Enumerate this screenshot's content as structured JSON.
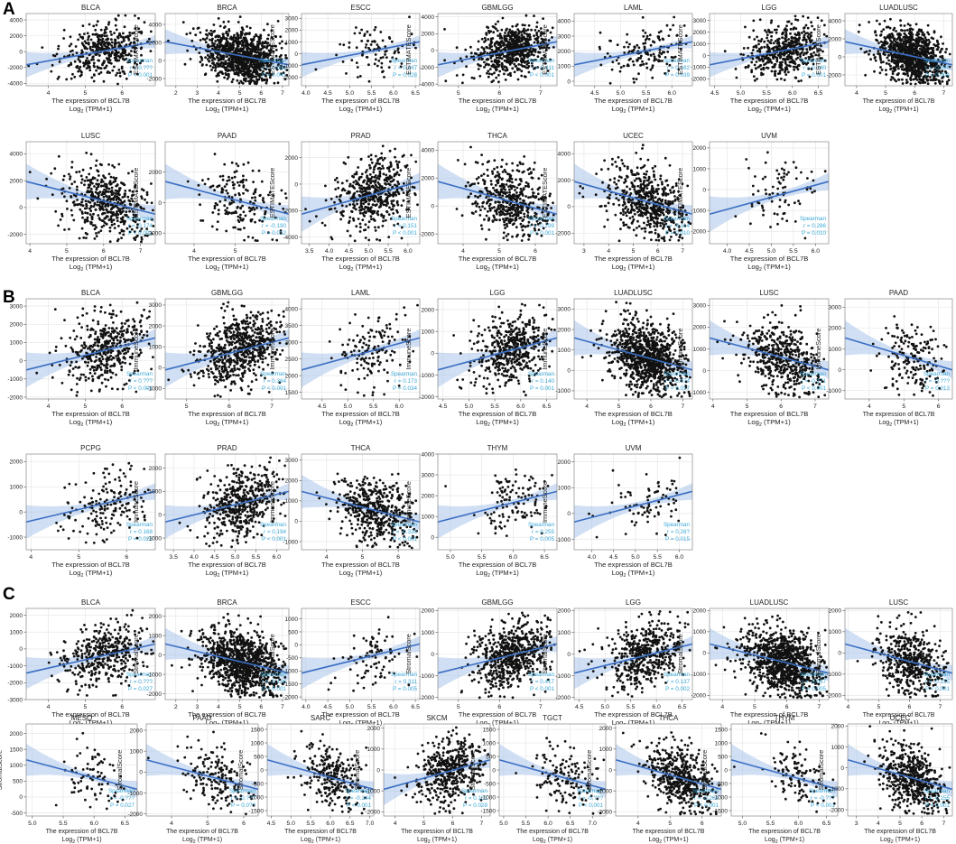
{
  "figure": {
    "colors": {
      "point": "#111111",
      "line": "#3b6fc4",
      "band": "#aac4ea",
      "stat": "#3aa7d6",
      "frame": "#888888"
    },
    "xlabel": "The expression of BCL7B",
    "xlabel2": "Log",
    "xlabel2_sub": "2",
    "xlabel2_tail": " (TPM+1)",
    "stat_label": "Spearman",
    "panels": [
      {
        "label": "A",
        "ylabel": "ESTIMATEScore"
      },
      {
        "label": "B",
        "ylabel": "ImmuneScore"
      },
      {
        "label": "C",
        "ylabel": "StromalScore"
      }
    ]
  },
  "chart_data": [
    {
      "panel": "A",
      "title": "BLCA",
      "type": "scatter",
      "xticks": [
        "4",
        "5",
        "6"
      ],
      "yticks": [
        "-4000",
        "-2000",
        "0",
        "2000",
        "4000"
      ],
      "xlim": [
        3.4,
        6.9
      ],
      "ylim": [
        -4300,
        4800
      ],
      "slope": "pos",
      "r": "r = 0.???",
      "p": "P < 0.001",
      "n": 420
    },
    {
      "panel": "A",
      "title": "BRCA",
      "type": "scatter",
      "xticks": [
        "2",
        "3",
        "4",
        "5",
        "6",
        "7"
      ],
      "yticks": [
        "-2000",
        "0",
        "2000",
        "4000"
      ],
      "xlim": [
        1.5,
        7.3
      ],
      "ylim": [
        -2800,
        5200
      ],
      "slope": "neg",
      "r": "r = -0.061",
      "p": "P = 0.041",
      "n": 1000
    },
    {
      "panel": "A",
      "title": "ESCC",
      "type": "scatter",
      "xticks": [
        "4.0",
        "4.5",
        "5.0",
        "5.5",
        "6.0",
        "6.5"
      ],
      "yticks": [
        "-2000",
        "-1000",
        "0",
        "1000",
        "2000",
        "3000"
      ],
      "xlim": [
        3.9,
        6.6
      ],
      "ylim": [
        -2700,
        3400
      ],
      "slope": "pos",
      "r": "r = 0.247",
      "p": "P = 0.028",
      "n": 90
    },
    {
      "panel": "A",
      "title": "GBMLGG",
      "type": "scatter",
      "xticks": [
        "5",
        "6",
        "7"
      ],
      "yticks": [
        "-4000",
        "-2000",
        "0",
        "2000",
        "4000"
      ],
      "xlim": [
        4.5,
        7.4
      ],
      "ylim": [
        -4200,
        4400
      ],
      "slope": "pos",
      "r": "r = 0.411",
      "p": "P < 0.001",
      "n": 650
    },
    {
      "panel": "A",
      "title": "LAML",
      "type": "scatter",
      "xticks": [
        "4.5",
        "5.0",
        "5.5",
        "6.0"
      ],
      "yticks": [
        "0",
        "1000",
        "2000",
        "3000",
        "4000"
      ],
      "xlim": [
        4.1,
        6.4
      ],
      "ylim": [
        -300,
        4500
      ],
      "slope": "pos",
      "r": "r = 0.162",
      "p": "P = 0.039",
      "n": 150
    },
    {
      "panel": "A",
      "title": "LGG",
      "type": "scatter",
      "xticks": [
        "4.5",
        "5.0",
        "5.5",
        "6.0",
        "6.5"
      ],
      "yticks": [
        "-2000",
        "-1000",
        "0",
        "1000",
        "2000",
        "3000"
      ],
      "xlim": [
        4.4,
        6.7
      ],
      "ylim": [
        -2600,
        3600
      ],
      "slope": "pos",
      "r": "r = 0.140",
      "p": "P = 0.001",
      "n": 500
    },
    {
      "panel": "A",
      "title": "LUADLUSC",
      "type": "scatter",
      "xticks": [
        "4",
        "5",
        "6",
        "7"
      ],
      "yticks": [
        "-2000",
        "0",
        "2000",
        "4000"
      ],
      "xlim": [
        3.6,
        7.3
      ],
      "ylim": [
        -3200,
        4800
      ],
      "slope": "neg",
      "r": "r = -0.090",
      "p": "P = 0.004",
      "n": 1000
    },
    {
      "panel": "A",
      "title": "LUSC",
      "type": "scatter",
      "xticks": [
        "4",
        "5",
        "6",
        "7"
      ],
      "yticks": [
        "-2000",
        "0",
        "2000",
        "4000"
      ],
      "xlim": [
        3.9,
        7.4
      ],
      "ylim": [
        -2700,
        4900
      ],
      "slope": "neg",
      "r": "r = -0.174",
      "p": "P < 0.001",
      "n": 500
    },
    {
      "panel": "A",
      "title": "PAAD",
      "type": "scatter",
      "xticks": [
        "4",
        "5"
      ],
      "yticks": [
        "-2000",
        "0",
        "2000"
      ],
      "xlim": [
        3.3,
        6.3
      ],
      "ylim": [
        -2700,
        4000
      ],
      "slope": "neg",
      "r": "r = -0.190",
      "p": "P = 0.012",
      "n": 180
    },
    {
      "panel": "A",
      "title": "PRAD",
      "type": "scatter",
      "xticks": [
        "3.5",
        "4.0",
        "4.5",
        "5.0",
        "5.5",
        "6.0"
      ],
      "yticks": [
        "-4000",
        "-2000",
        "0",
        "2000"
      ],
      "xlim": [
        3.3,
        6.3
      ],
      "ylim": [
        -4500,
        3200
      ],
      "slope": "pos",
      "r": "r = 0.151",
      "p": "P < 0.001",
      "n": 500
    },
    {
      "panel": "A",
      "title": "THCA",
      "type": "scatter",
      "xticks": [
        "4",
        "5",
        "6"
      ],
      "yticks": [
        "-2000",
        "0",
        "2000",
        "4000"
      ],
      "xlim": [
        3.3,
        6.6
      ],
      "ylim": [
        -2700,
        4600
      ],
      "slope": "neg",
      "r": "r = -0.299",
      "p": "P < 0.001",
      "n": 500
    },
    {
      "panel": "A",
      "title": "UCEC",
      "type": "scatter",
      "xticks": [
        "3",
        "4",
        "5",
        "6",
        "7"
      ],
      "yticks": [
        "-2000",
        "0",
        "2000",
        "4000"
      ],
      "xlim": [
        2.6,
        7.4
      ],
      "ylim": [
        -2800,
        4900
      ],
      "slope": "neg",
      "r": "r = -0.114",
      "p": "P = 0.010",
      "n": 550
    },
    {
      "panel": "A",
      "title": "UVM",
      "type": "scatter",
      "xticks": [
        "4.0",
        "4.5",
        "5.0",
        "5.5",
        "6.0"
      ],
      "yticks": [
        "-2000",
        "-1000",
        "0",
        "1000",
        "2000"
      ],
      "xlim": [
        3.6,
        6.3
      ],
      "ylim": [
        -2600,
        2300
      ],
      "slope": "pos",
      "r": "r = 0.286",
      "p": "P = 0.010",
      "n": 80
    },
    {
      "panel": "B",
      "title": "BLCA",
      "type": "scatter",
      "xticks": [
        "4",
        "5",
        "6"
      ],
      "yticks": [
        "-2000",
        "-1000",
        "0",
        "1000",
        "2000",
        "3000"
      ],
      "xlim": [
        3.4,
        6.9
      ],
      "ylim": [
        -2100,
        3400
      ],
      "slope": "pos",
      "r": "r = 0.???",
      "p": "P < 0.001",
      "n": 420
    },
    {
      "panel": "B",
      "title": "GBMLGG",
      "type": "scatter",
      "xticks": [
        "5",
        "6",
        "7"
      ],
      "yticks": [
        "-1000",
        "0",
        "1000",
        "2000",
        "3000"
      ],
      "xlim": [
        4.5,
        7.4
      ],
      "ylim": [
        -1500,
        3300
      ],
      "slope": "pos",
      "r": "r = 0.384",
      "p": "P < 0.001",
      "n": 650
    },
    {
      "panel": "B",
      "title": "LAML",
      "type": "scatter",
      "xticks": [
        "4.5",
        "5.0",
        "5.5",
        "6.0"
      ],
      "yticks": [
        "1500",
        "2000",
        "2500",
        "3000",
        "3500",
        "4000"
      ],
      "xlim": [
        4.1,
        6.4
      ],
      "ylim": [
        1300,
        4300
      ],
      "slope": "pos",
      "r": "r = 0.173",
      "p": "P = 0.034",
      "n": 150
    },
    {
      "panel": "B",
      "title": "LGG",
      "type": "scatter",
      "xticks": [
        "4.5",
        "5.0",
        "5.5",
        "6.0",
        "6.5"
      ],
      "yticks": [
        "-2000",
        "-1000",
        "0",
        "1000",
        "2000"
      ],
      "xlim": [
        4.4,
        6.7
      ],
      "ylim": [
        -2100,
        2500
      ],
      "slope": "pos",
      "r": "r = 0.140",
      "p": "P = 0.001",
      "n": 500
    },
    {
      "panel": "B",
      "title": "LUADLUSC",
      "type": "scatter",
      "xticks": [
        "4",
        "5",
        "6",
        "7"
      ],
      "yticks": [
        "-1000",
        "0",
        "1000",
        "2000",
        "3000"
      ],
      "xlim": [
        3.6,
        7.3
      ],
      "ylim": [
        -1400,
        3500
      ],
      "slope": "neg",
      "r": "r = -0.074",
      "p": "P = 0.017",
      "n": 1000
    },
    {
      "panel": "B",
      "title": "LUSC",
      "type": "scatter",
      "xticks": [
        "4",
        "5",
        "6",
        "7"
      ],
      "yticks": [
        "-1000",
        "0",
        "1000",
        "2000",
        "3000"
      ],
      "xlim": [
        3.9,
        7.4
      ],
      "ylim": [
        -1300,
        3300
      ],
      "slope": "neg",
      "r": "r = -0.171",
      "p": "P < 0.001",
      "n": 500
    },
    {
      "panel": "B",
      "title": "PAAD",
      "type": "scatter",
      "xticks": [
        "4",
        "5",
        "6"
      ],
      "yticks": [
        "-1000",
        "0",
        "1000",
        "2000",
        "3000"
      ],
      "xlim": [
        3.3,
        6.4
      ],
      "ylim": [
        -1400,
        3400
      ],
      "slope": "neg",
      "r": "r = -0.???",
      "p": "P = 0.013",
      "n": 180
    },
    {
      "panel": "B",
      "title": "PCPG",
      "type": "scatter",
      "xticks": [
        "4",
        "5",
        "6"
      ],
      "yticks": [
        "-1000",
        "0",
        "1000",
        "2000"
      ],
      "xlim": [
        3.9,
        6.6
      ],
      "ylim": [
        -1500,
        2300
      ],
      "slope": "pos",
      "r": "r = 0.168",
      "p": "P = 0.023",
      "n": 180
    },
    {
      "panel": "B",
      "title": "PRAD",
      "type": "scatter",
      "xticks": [
        "3.5",
        "4.0",
        "4.5",
        "5.0",
        "5.5",
        "6.0"
      ],
      "yticks": [
        "-1000",
        "0",
        "1000",
        "2000"
      ],
      "xlim": [
        3.3,
        6.3
      ],
      "ylim": [
        -1500,
        2600
      ],
      "slope": "pos",
      "r": "r = 0.194",
      "p": "P < 0.001",
      "n": 500
    },
    {
      "panel": "B",
      "title": "THCA",
      "type": "scatter",
      "xticks": [
        "4",
        "5",
        "6"
      ],
      "yticks": [
        "-1000",
        "0",
        "1000",
        "2000",
        "3000"
      ],
      "xlim": [
        3.3,
        6.6
      ],
      "ylim": [
        -1400,
        3300
      ],
      "slope": "neg",
      "r": "r = -0.330",
      "p": "P < 0.001",
      "n": 500
    },
    {
      "panel": "B",
      "title": "THYM",
      "type": "scatter",
      "xticks": [
        "5.0",
        "5.5",
        "6.0",
        "6.5"
      ],
      "yticks": [
        "0",
        "1000",
        "2000",
        "3000",
        "4000"
      ],
      "xlim": [
        4.8,
        6.7
      ],
      "ylim": [
        -600,
        4000
      ],
      "slope": "pos",
      "r": "r = 0.255",
      "p": "P = 0.005",
      "n": 120
    },
    {
      "panel": "B",
      "title": "UVM",
      "type": "scatter",
      "xticks": [
        "4.0",
        "4.5",
        "5.0",
        "5.5",
        "6.0"
      ],
      "yticks": [
        "-1000",
        "0",
        "1000",
        "2000"
      ],
      "xlim": [
        3.6,
        6.3
      ],
      "ylim": [
        -1400,
        2300
      ],
      "slope": "pos",
      "r": "r = 0.26?",
      "p": "P = 0.015",
      "n": 80
    },
    {
      "panel": "C",
      "title": "BLCA",
      "type": "scatter",
      "xticks": [
        "4",
        "5",
        "6"
      ],
      "yticks": [
        "-3000",
        "-2000",
        "-1000",
        "0",
        "1000",
        "2000"
      ],
      "xlim": [
        3.4,
        6.9
      ],
      "ylim": [
        -3000,
        2400
      ],
      "slope": "pos",
      "r": "r = 0.???",
      "p": "P = 0.027",
      "n": 420
    },
    {
      "panel": "C",
      "title": "BRCA",
      "type": "scatter",
      "xticks": [
        "2",
        "3",
        "4",
        "5",
        "6",
        "7"
      ],
      "yticks": [
        "-2000",
        "-1000",
        "0",
        "1000",
        "2000"
      ],
      "xlim": [
        1.5,
        7.3
      ],
      "ylim": [
        -2300,
        2400
      ],
      "slope": "neg",
      "r": "r = -0.136",
      "p": "P < 0.001",
      "n": 1000
    },
    {
      "panel": "C",
      "title": "ESCC",
      "type": "scatter",
      "xticks": [
        "4.0",
        "4.5",
        "5.0",
        "5.5",
        "6.0",
        "6.5"
      ],
      "yticks": [
        "-2000",
        "-1500",
        "-1000",
        "-500",
        "0",
        "500",
        "1000"
      ],
      "xlim": [
        3.9,
        6.6
      ],
      "ylim": [
        -2100,
        1400
      ],
      "slope": "pos",
      "r": "r = 0.311",
      "p": "P = 0.005",
      "n": 90
    },
    {
      "panel": "C",
      "title": "GBMLGG",
      "type": "scatter",
      "xticks": [
        "5",
        "6",
        "7"
      ],
      "yticks": [
        "-2000",
        "-1000",
        "0",
        "1000",
        "2000"
      ],
      "xlim": [
        4.5,
        7.4
      ],
      "ylim": [
        -2100,
        2100
      ],
      "slope": "pos",
      "r": "r = 0.417",
      "p": "P < 0.001",
      "n": 650
    },
    {
      "panel": "C",
      "title": "LGG",
      "type": "scatter",
      "xticks": [
        "4.5",
        "5.0",
        "5.5",
        "6.0",
        "6.5"
      ],
      "yticks": [
        "-2000",
        "-1000",
        "0",
        "1000",
        "2000"
      ],
      "xlim": [
        4.4,
        6.7
      ],
      "ylim": [
        -2100,
        2100
      ],
      "slope": "pos",
      "r": "r = 0.137",
      "p": "P = 0.002",
      "n": 500
    },
    {
      "panel": "C",
      "title": "LUADLUSC",
      "type": "scatter",
      "xticks": [
        "4",
        "5",
        "6",
        "7"
      ],
      "yticks": [
        "-2000",
        "-1000",
        "0",
        "1000",
        "2000"
      ],
      "xlim": [
        3.6,
        7.3
      ],
      "ylim": [
        -2200,
        2100
      ],
      "slope": "neg",
      "r": "r = -0.087",
      "p": "P = 0.005",
      "n": 1000
    },
    {
      "panel": "C",
      "title": "LUSC",
      "type": "scatter",
      "xticks": [
        "4",
        "5",
        "6",
        "7"
      ],
      "yticks": [
        "-2000",
        "-1000",
        "0",
        "1000",
        "2000"
      ],
      "xlim": [
        3.9,
        7.4
      ],
      "ylim": [
        -2200,
        2100
      ],
      "slope": "neg",
      "r": "r = -0.155",
      "p": "P < 0.001",
      "n": 500
    },
    {
      "panel": "C",
      "title": "MESO",
      "type": "scatter",
      "xticks": [
        "5.0",
        "5.5",
        "6.0",
        "6.5"
      ],
      "yticks": [
        "-500",
        "0",
        "500",
        "1000",
        "1500",
        "2000"
      ],
      "xlim": [
        4.9,
        6.7
      ],
      "ylim": [
        -600,
        2300
      ],
      "slope": "neg",
      "r": "r = -0.???",
      "p": "P = 0.027",
      "n": 85
    },
    {
      "panel": "C",
      "title": "PAAD",
      "type": "scatter",
      "xticks": [
        "4",
        "5",
        "6"
      ],
      "yticks": [
        "-2000",
        "-1000",
        "0",
        "1000",
        "2000"
      ],
      "xlim": [
        3.3,
        6.4
      ],
      "ylim": [
        -2100,
        2300
      ],
      "slope": "neg",
      "r": "r = -0.???",
      "p": "P = 0.0??",
      "n": 180
    },
    {
      "panel": "C",
      "title": "SARC",
      "type": "scatter",
      "xticks": [
        "4.5",
        "5.0",
        "5.5",
        "6.0",
        "6.5",
        "7.0"
      ],
      "yticks": [
        "-1500",
        "-1000",
        "-500",
        "0",
        "500",
        "1000",
        "1500"
      ],
      "xlim": [
        4.4,
        7.1
      ],
      "ylim": [
        -1700,
        1700
      ],
      "slope": "neg",
      "r": "r = -0.244",
      "p": "P < 0.001",
      "n": 260
    },
    {
      "panel": "C",
      "title": "SKCM",
      "type": "scatter",
      "xticks": [
        "4",
        "5",
        "6",
        "7"
      ],
      "yticks": [
        "-2000",
        "-1000",
        "0",
        "1000",
        "2000"
      ],
      "xlim": [
        3.6,
        7.3
      ],
      "ylim": [
        -2200,
        2200
      ],
      "slope": "pos",
      "r": "r = 0.101",
      "p": "P = 0.028",
      "n": 470
    },
    {
      "panel": "C",
      "title": "TGCT",
      "type": "scatter",
      "xticks": [
        "5.0",
        "5.5",
        "6.0",
        "6.5",
        "7.0"
      ],
      "yticks": [
        "-1500",
        "-1000",
        "-500",
        "0",
        "500",
        "1000",
        "1500"
      ],
      "xlim": [
        4.9,
        7.3
      ],
      "ylim": [
        -1700,
        1700
      ],
      "slope": "neg",
      "r": "r = -0.???",
      "p": "P < 0.001",
      "n": 150
    },
    {
      "panel": "C",
      "title": "THCA",
      "type": "scatter",
      "xticks": [
        "4",
        "5",
        "6"
      ],
      "yticks": [
        "-2000",
        "-1000",
        "0",
        "1000",
        "2000"
      ],
      "xlim": [
        3.3,
        6.6
      ],
      "ylim": [
        -2200,
        2200
      ],
      "slope": "neg",
      "r": "r = -0.204",
      "p": "P < 0.001",
      "n": 500
    },
    {
      "panel": "C",
      "title": "THYM",
      "type": "scatter",
      "xticks": [
        "5.0",
        "5.5",
        "6.0",
        "6.5"
      ],
      "yticks": [
        "-1500",
        "-1000",
        "-500",
        "0",
        "500",
        "1000",
        "1500"
      ],
      "xlim": [
        4.8,
        6.7
      ],
      "ylim": [
        -1700,
        1700
      ],
      "slope": "neg",
      "r": "r = -0.???",
      "p": "P < 0.001",
      "n": 120
    },
    {
      "panel": "C",
      "title": "UCEC",
      "type": "scatter",
      "xticks": [
        "3",
        "4",
        "5",
        "6",
        "7"
      ],
      "yticks": [
        "-2000",
        "-1000",
        "0",
        "1000",
        "2000"
      ],
      "xlim": [
        2.6,
        7.4
      ],
      "ylim": [
        -2300,
        2100
      ],
      "slope": "neg",
      "r": "r = -0.155",
      "p": "P < 0.001",
      "n": 550
    }
  ]
}
